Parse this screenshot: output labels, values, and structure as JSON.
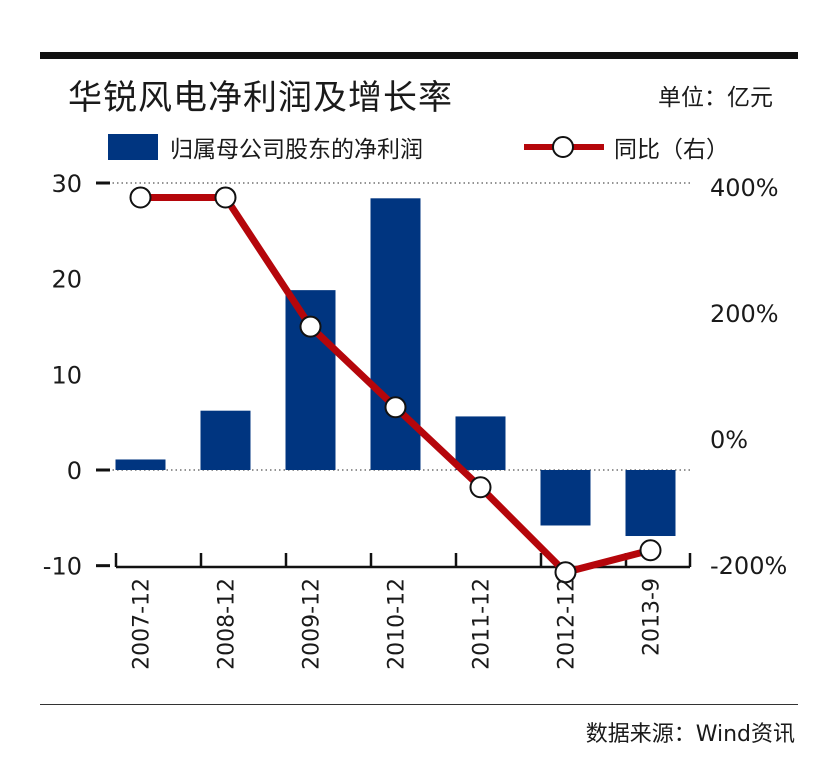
{
  "title": "华锐风电净利润及增长率",
  "unit": "单位：亿元",
  "source": "数据来源：Wind资讯",
  "colors": {
    "bar": "#003580",
    "line": "#b5060b"
  },
  "chart_data": {
    "type": "bar",
    "categories": [
      "2007-12",
      "2008-12",
      "2009-12",
      "2010-12",
      "2011-12",
      "2012-12",
      "2013-9"
    ],
    "series": [
      {
        "name": "归属母公司股东的净利润",
        "type": "bar",
        "axis": "left",
        "values": [
          1.1,
          6.2,
          18.8,
          28.4,
          5.6,
          -5.8,
          -6.9
        ]
      },
      {
        "name": "同比（右）",
        "type": "line",
        "axis": "right",
        "values": [
          385,
          385,
          180,
          52,
          -75,
          -210,
          -175
        ]
      }
    ],
    "yleft": {
      "lim": [
        -10,
        30
      ],
      "ticks": [
        "30",
        "20",
        "10",
        "0",
        "-10"
      ]
    },
    "yright": {
      "lim": [
        -200,
        400
      ],
      "ticks": [
        "400%",
        "200%",
        "0%",
        "-200%"
      ]
    },
    "grid": "dotted lines at 30 and 0"
  }
}
